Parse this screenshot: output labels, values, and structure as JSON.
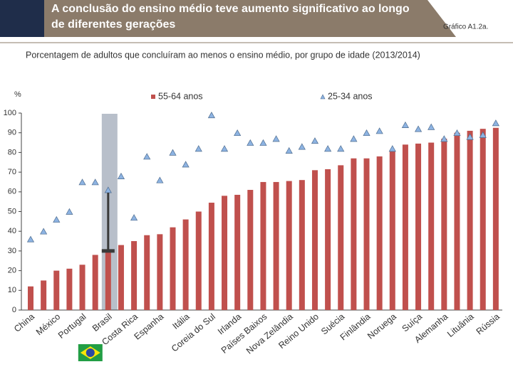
{
  "chart_data": {
    "type": "bar",
    "title": "A conclusão do ensino médio teve aumento significativo ao longo de diferentes gerações",
    "figure_label": "Gráfico A1.2a.",
    "subtitle": "Porcentagem de adultos que concluíram ao menos o ensino médio, por grupo de idade (2013/2014)",
    "ylabel": "%",
    "categories": [
      "China",
      null,
      "México",
      null,
      "Portugal",
      null,
      "Brasil",
      null,
      "Costa Rica",
      null,
      "Espanha",
      null,
      "Itália",
      null,
      "Coreia do Sul",
      null,
      "Irlanda",
      null,
      "Países Baixos",
      null,
      "Nova Zelândia",
      null,
      "Reino Unido",
      null,
      "Suécia",
      null,
      "Finlândia",
      null,
      "Noruega",
      null,
      "Suíça",
      null,
      "Alemanha",
      null,
      "Lituânia",
      null,
      "Rússia"
    ],
    "series": [
      {
        "name": "55-64 anos",
        "color": "#c0504d",
        "marker": "bar",
        "values": [
          12,
          15,
          20,
          21,
          23,
          28,
          30,
          33,
          35,
          38,
          38.5,
          42,
          46,
          50,
          54.5,
          58,
          58.5,
          61,
          65,
          65,
          65.5,
          66,
          71,
          71.5,
          73.5,
          77,
          77,
          78,
          81,
          84,
          84.5,
          85,
          87,
          90,
          91,
          92,
          92.5
        ]
      },
      {
        "name": "25-34 anos",
        "color": "#8db3e2",
        "marker": "triangle",
        "values": [
          36,
          40,
          46,
          50,
          65,
          65,
          61,
          68,
          47,
          78,
          66,
          80,
          74,
          82,
          99,
          82,
          90,
          85,
          85,
          87,
          81,
          83,
          86,
          82,
          82,
          87,
          90,
          91,
          82,
          94,
          92,
          93,
          87,
          90,
          88,
          89,
          95
        ]
      }
    ],
    "ylim": [
      0,
      100
    ],
    "yticks": [
      0,
      10,
      20,
      30,
      40,
      50,
      60,
      70,
      80,
      90,
      100
    ],
    "grid": false,
    "highlight": "Brasil"
  }
}
